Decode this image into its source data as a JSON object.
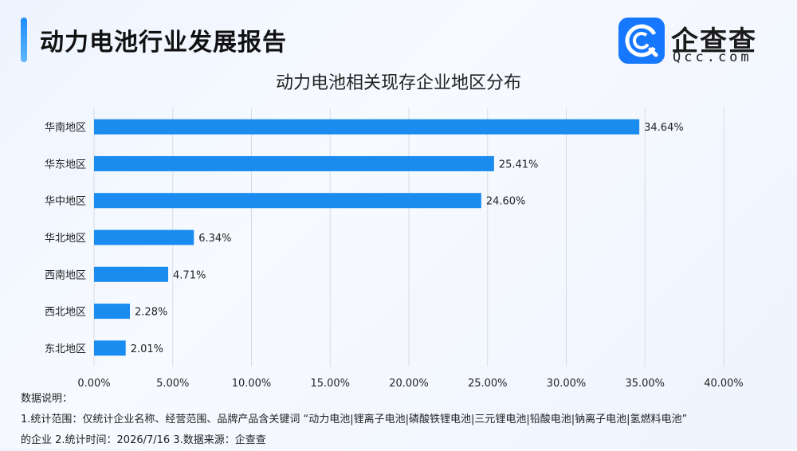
{
  "header": {
    "title": "动力电池行业发展报告"
  },
  "logo": {
    "name": "企查查",
    "domain": "Qcc.com"
  },
  "chart_data": {
    "type": "bar",
    "orientation": "horizontal",
    "title": "动力电池相关现存企业地区分布",
    "categories": [
      "华南地区",
      "华东地区",
      "华中地区",
      "华北地区",
      "西南地区",
      "西北地区",
      "东北地区"
    ],
    "values": [
      34.64,
      25.41,
      24.6,
      6.34,
      4.71,
      2.28,
      2.01
    ],
    "value_labels": [
      "34.64%",
      "25.41%",
      "24.60%",
      "6.34%",
      "4.71%",
      "2.28%",
      "2.01%"
    ],
    "xlim": [
      0,
      40
    ],
    "xticks": [
      0,
      5,
      10,
      15,
      20,
      25,
      30,
      35,
      40
    ],
    "xtick_labels": [
      "0.00%",
      "5.00%",
      "10.00%",
      "15.00%",
      "20.00%",
      "25.00%",
      "30.00%",
      "35.00%",
      "40.00%"
    ],
    "grid": true,
    "bar_color": "#1a8cf0",
    "grid_color": "#d5dbe6"
  },
  "notes": {
    "line1": "数据说明：",
    "line2": "1.统计范围：仅统计企业名称、经营范围、品牌产品含关键词 “动力电池|锂离子电池|磷酸铁锂电池|三元锂电池|铅酸电池|钠离子电池|氢燃料电池”",
    "line3": "的企业   2.统计时间：2026/7/16  3.数据来源：企查查"
  }
}
